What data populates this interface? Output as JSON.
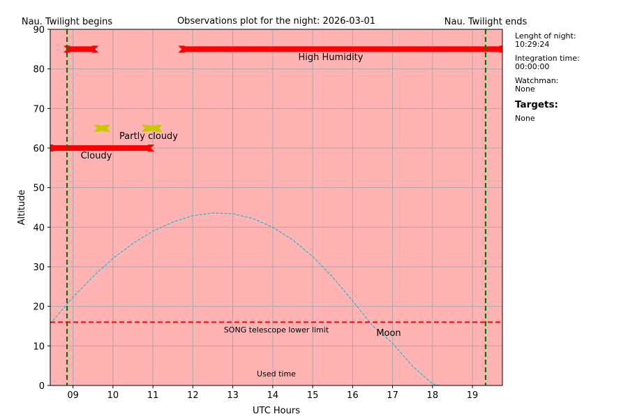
{
  "chart_data": {
    "type": "line",
    "title": "Observations plot for the night: 2026-03-01",
    "xlabel": "UTC Hours",
    "ylabel": "Altitude",
    "xlim": [
      8.43,
      19.75
    ],
    "ylim": [
      0,
      90
    ],
    "grid": true,
    "background_color": "#ffb3b3",
    "xticks": [
      9,
      10,
      11,
      12,
      13,
      14,
      15,
      16,
      17,
      18,
      19
    ],
    "xtick_labels": [
      "09",
      "10",
      "11",
      "12",
      "13",
      "14",
      "15",
      "16",
      "17",
      "18",
      "19"
    ],
    "yticks": [
      0,
      10,
      20,
      30,
      40,
      50,
      60,
      70,
      80,
      90
    ],
    "twilight": {
      "begins_label": "Nau. Twilight begins",
      "ends_label": "Nau. Twilight ends",
      "begins_x": 8.85,
      "ends_x": 19.33,
      "color": "#007a00"
    },
    "telescope_limit": {
      "label": "SONG telescope lower limit",
      "y": 16,
      "color": "#ff0000"
    },
    "used_time_label": "Used time",
    "moon": {
      "label": "Moon",
      "color": "#17becf",
      "x": [
        8.43,
        9,
        9.5,
        10,
        10.5,
        11,
        11.5,
        12,
        12.5,
        13,
        13.5,
        14,
        14.5,
        15,
        15.5,
        16,
        16.5,
        17,
        17.5,
        18,
        18.2
      ],
      "y": [
        15.6,
        22.3,
        27.5,
        32.1,
        35.9,
        39.0,
        41.3,
        42.9,
        43.6,
        43.4,
        42.2,
        40.0,
        36.8,
        32.6,
        27.4,
        21.4,
        15.1,
        10.7,
        4.9,
        0.4,
        0.0
      ]
    },
    "weather_bars": [
      {
        "label": "",
        "y": 85,
        "x_start": 8.85,
        "x_end": 9.55,
        "color": "#ff0000"
      },
      {
        "label": "High Humidity",
        "y": 85,
        "x_start": 11.72,
        "x_end": 19.75,
        "color": "#ff0000"
      },
      {
        "label": "Partly cloudy",
        "y": 65,
        "x_start": 9.6,
        "x_end": 9.85,
        "color": "#c8c800"
      },
      {
        "label": "",
        "y": 65,
        "x_start": 10.8,
        "x_end": 11.15,
        "color": "#c8c800"
      },
      {
        "label": "Cloudy",
        "y": 60,
        "x_start": 8.43,
        "x_end": 10.95,
        "color": "#ff0000"
      }
    ]
  },
  "sidebar": {
    "night_length_label": "Lenght of night:",
    "night_length_value": "10:29:24",
    "integration_label": "Integration time:",
    "integration_value": "00:00:00",
    "watchman_label": "Watchman:",
    "watchman_value": "None",
    "targets_heading": "Targets:",
    "targets_value": "None"
  }
}
